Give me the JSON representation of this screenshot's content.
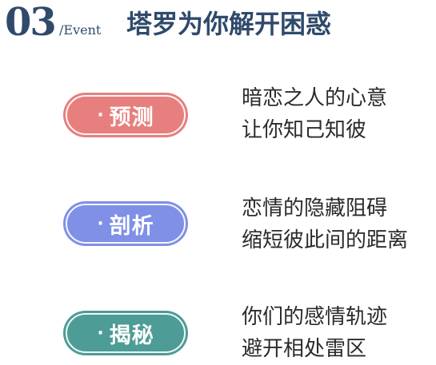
{
  "header": {
    "number": "03",
    "slash_event": "/Event",
    "title": "塔罗为你解开困惑"
  },
  "items": [
    {
      "bullet": "·",
      "label": "预测",
      "line1": "暗恋之人的心意",
      "line2": "让你知己知彼",
      "color": "#e67f7d"
    },
    {
      "bullet": "·",
      "label": "剖析",
      "line1": "恋情的隐藏阻碍",
      "line2": "缩短彼此间的距离",
      "color": "#7f90e6"
    },
    {
      "bullet": "·",
      "label": "揭秘",
      "line1": "你们的感情轨迹",
      "line2": "避开相处雷区",
      "color": "#4d9c96"
    }
  ]
}
